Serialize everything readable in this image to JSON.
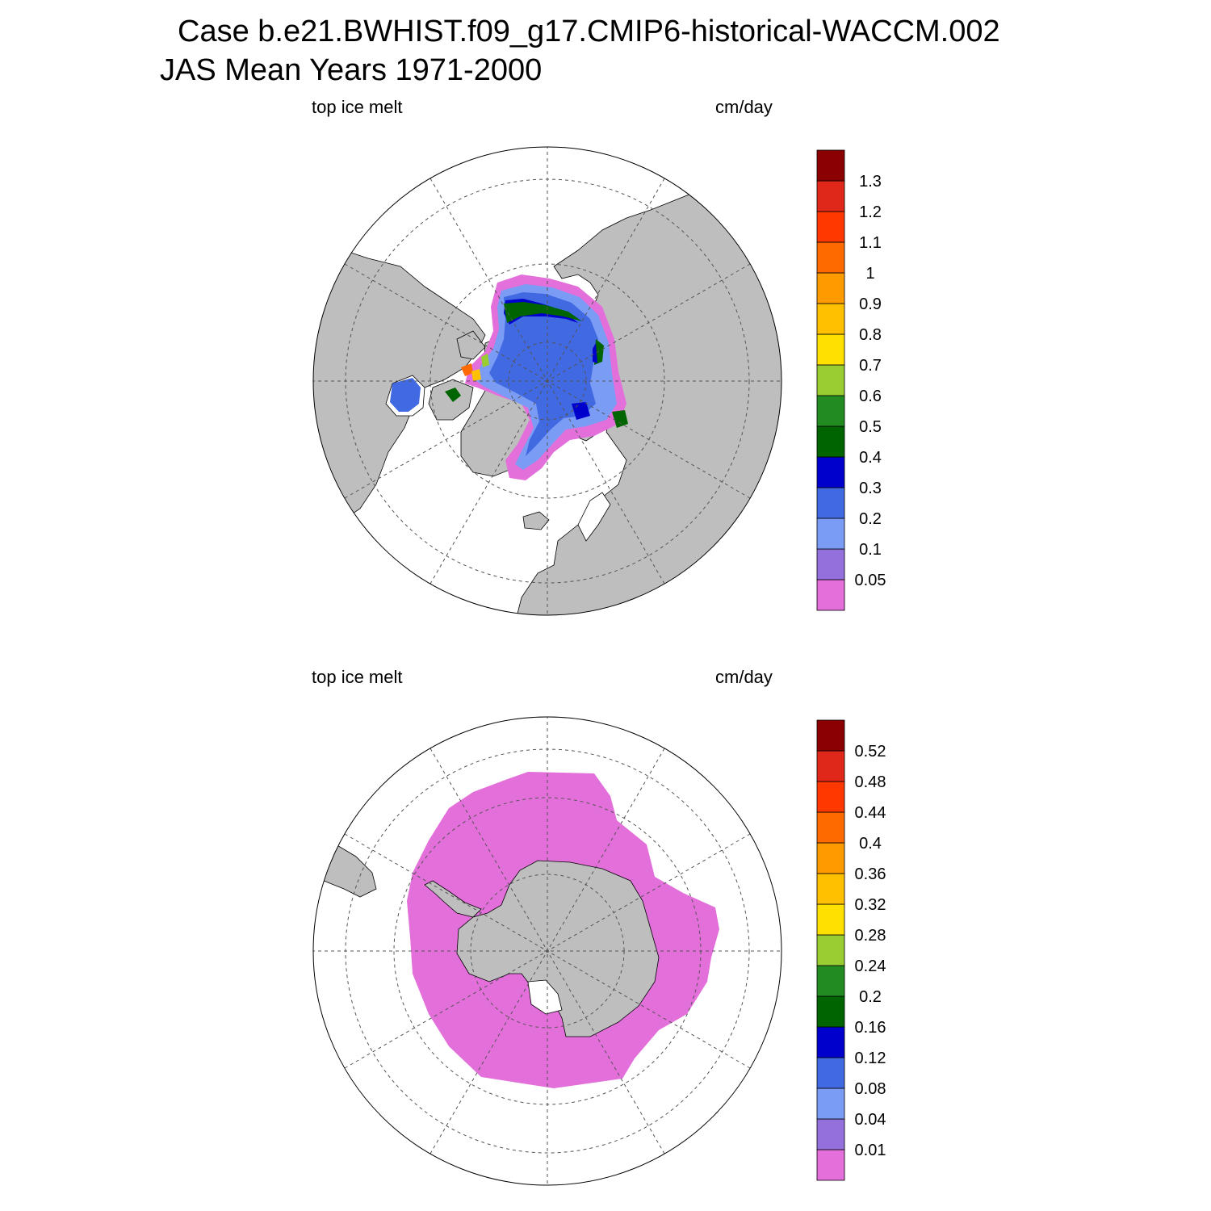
{
  "title": {
    "case": "Case b.e21.BWHIST.f09_g17.CMIP6-historical-WACCM.002",
    "period": "JAS Mean   Years 1971-2000"
  },
  "panels": [
    {
      "id": "north",
      "hemisphere": "NH",
      "left_label": "top ice melt",
      "right_label": "cm/day",
      "colorbar": {
        "colors": [
          "#e36fda",
          "#9370db",
          "#7a9cf5",
          "#4169e1",
          "#0000cd",
          "#006400",
          "#228b22",
          "#9acd32",
          "#ffe000",
          "#ffc000",
          "#ff9a00",
          "#ff6a00",
          "#ff3800",
          "#e0281a",
          "#8b0000"
        ],
        "levels": [
          "0.05",
          "0.1",
          "0.2",
          "0.3",
          "0.4",
          "0.5",
          "0.6",
          "0.7",
          "0.8",
          "0.9",
          "1",
          "1.1",
          "1.2",
          "1.3"
        ]
      }
    },
    {
      "id": "south",
      "hemisphere": "SH",
      "left_label": "top ice melt",
      "right_label": "cm/day",
      "colorbar": {
        "colors": [
          "#e36fda",
          "#9370db",
          "#7a9cf5",
          "#4169e1",
          "#0000cd",
          "#006400",
          "#228b22",
          "#9acd32",
          "#ffe000",
          "#ffc000",
          "#ff9a00",
          "#ff6a00",
          "#ff3800",
          "#e0281a",
          "#8b0000"
        ],
        "levels": [
          "0.01",
          "0.04",
          "0.08",
          "0.12",
          "0.16",
          "0.2",
          "0.24",
          "0.28",
          "0.32",
          "0.36",
          "0.4",
          "0.44",
          "0.48",
          "0.52"
        ]
      }
    }
  ],
  "colors": {
    "land": "#bebebe",
    "ocean": "#ffffff",
    "grid": "#555555"
  }
}
